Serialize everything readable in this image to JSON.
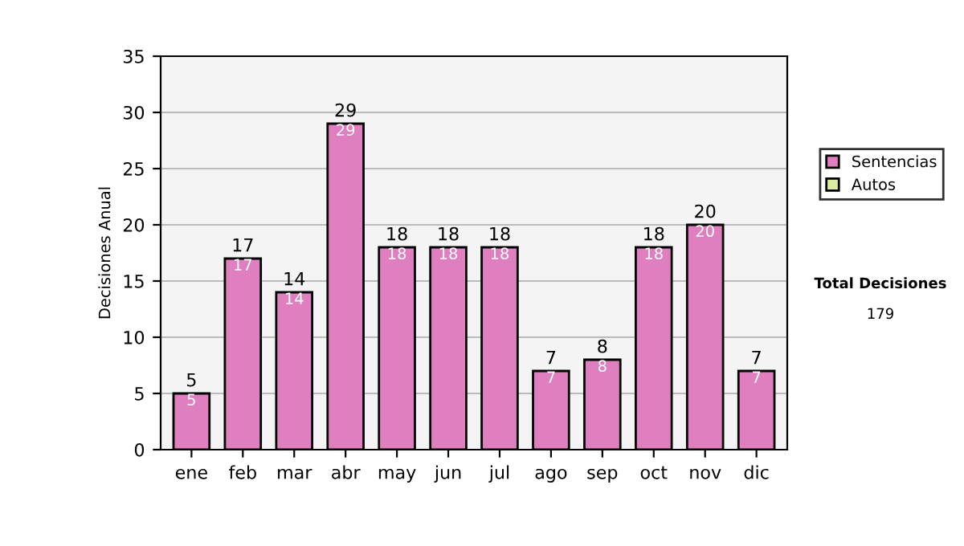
{
  "chart_data": {
    "type": "bar",
    "ylabel": "Decisiones Anual",
    "stacked": true,
    "categories": [
      "ene",
      "feb",
      "mar",
      "abr",
      "may",
      "jun",
      "jul",
      "ago",
      "sep",
      "oct",
      "nov",
      "dic"
    ],
    "series": [
      {
        "name": "Sentencias",
        "color": "#df7fbf",
        "values": [
          5,
          17,
          14,
          29,
          18,
          18,
          18,
          7,
          8,
          18,
          20,
          7
        ],
        "value_labels": [
          "5",
          "17",
          "14",
          "29",
          "18",
          "18",
          "18",
          "7",
          "8",
          "18",
          "20",
          "7"
        ]
      },
      {
        "name": "Autos",
        "color": "#d9eca0",
        "values": [
          null,
          null,
          null,
          null,
          null,
          null,
          null,
          null,
          null,
          null,
          null,
          null
        ]
      }
    ],
    "totals": [
      "5",
      "17",
      "14",
      "29",
      "18",
      "18",
      "18",
      "7",
      "8",
      "18",
      "20",
      "7"
    ],
    "ylim": [
      0,
      35
    ],
    "yticks": [
      0,
      5,
      10,
      15,
      20,
      25,
      30,
      35
    ],
    "grid": "y",
    "legend": "right",
    "annotations": [
      "Total Decisiones",
      "179"
    ]
  }
}
